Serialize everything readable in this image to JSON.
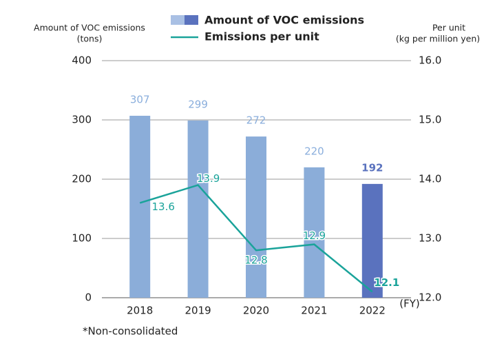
{
  "chart_data": {
    "type": "bar-line",
    "legend_title_left": "Amount of VOC emissions",
    "y_label_left_unit": "(tons)",
    "y_label_right": "Per unit",
    "y_label_right_unit": "(kg per million yen)",
    "x_unit": "(FY)",
    "note": "*Non-consolidated",
    "categories": [
      "2018",
      "2019",
      "2020",
      "2021",
      "2022"
    ],
    "series": [
      {
        "name": "Amount of VOC emissions",
        "color": "#8badd9",
        "colors": [
          "#8badd9",
          "#8badd9",
          "#8badd9",
          "#8badd9",
          "#5a72be"
        ],
        "values": [
          307,
          299,
          272,
          220,
          192
        ]
      },
      {
        "name": "Emissions per unit",
        "color": "#1aa39a",
        "axis": "y2",
        "values": [
          13.6,
          13.9,
          12.8,
          12.9,
          12.1
        ]
      }
    ],
    "ylim": [
      0,
      400
    ],
    "yticks": [
      0,
      100,
      200,
      300,
      400
    ],
    "y2lim": [
      12,
      16
    ],
    "y2ticks": [
      {
        "value": 12,
        "label": "12.0"
      },
      {
        "value": 13,
        "label": "13.0"
      },
      {
        "value": 14,
        "label": "14.0"
      },
      {
        "value": 15,
        "label": "15.0"
      },
      {
        "value": 16,
        "label": "16.0"
      }
    ],
    "grid": true
  }
}
